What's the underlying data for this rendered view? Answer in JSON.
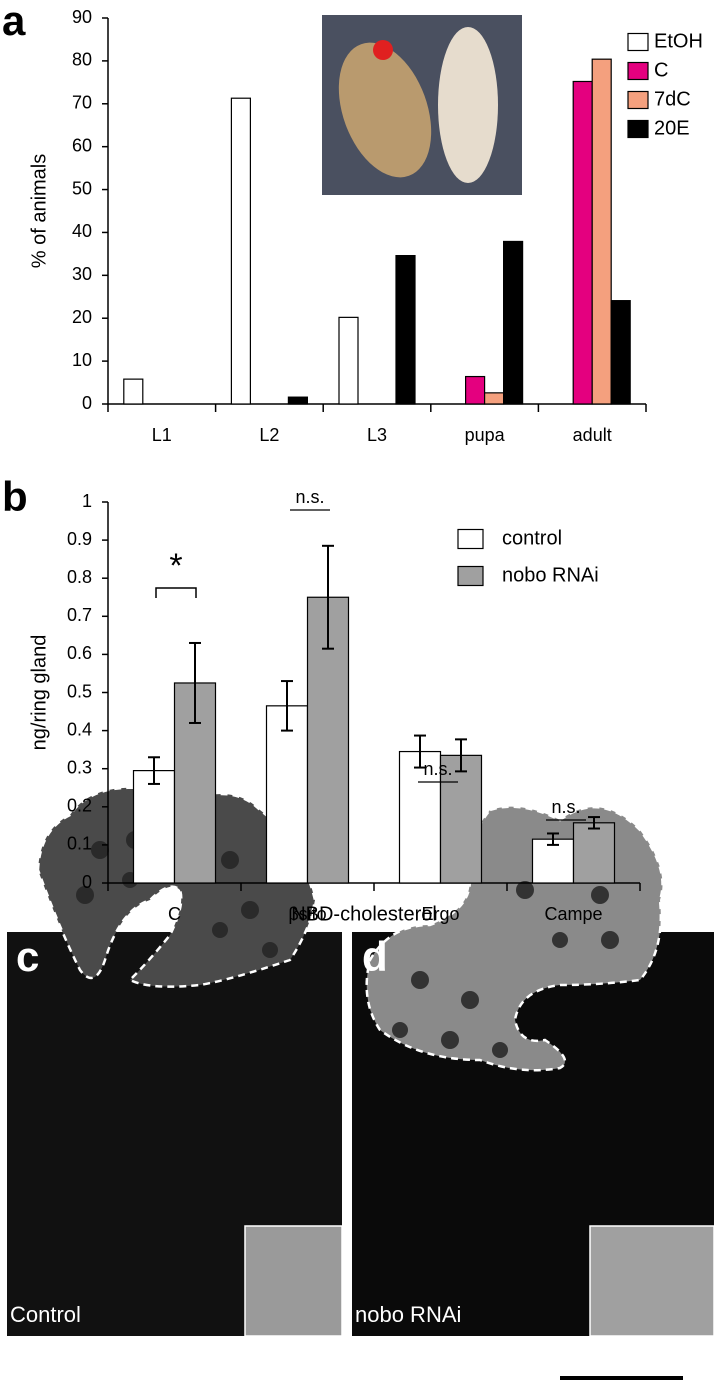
{
  "chart_data": [
    {
      "type": "bar",
      "y_label": "% of animals",
      "categories": [
        "L1",
        "L2",
        "L3",
        "pupa",
        "adult"
      ],
      "series": [
        {
          "name": "EtOH",
          "color": "#ffffff",
          "values": [
            5.8,
            71.3,
            20.2,
            0,
            0
          ]
        },
        {
          "name": "C",
          "color": "#e4007f",
          "values": [
            0,
            0,
            0,
            6.4,
            75.2
          ]
        },
        {
          "name": "7dC",
          "color": "#f4a07e",
          "values": [
            0,
            0,
            0,
            2.6,
            80.4
          ]
        },
        {
          "name": "20E",
          "color": "#000000",
          "values": [
            0,
            1.6,
            34.6,
            37.9,
            24.1
          ]
        }
      ],
      "ylim": [
        0,
        90
      ],
      "yticks": [
        0,
        10,
        20,
        30,
        40,
        50,
        60,
        70,
        80,
        90
      ],
      "legend": "top-right"
    },
    {
      "type": "bar",
      "y_label": "ng/ring gland",
      "categories": [
        "C",
        "βsito",
        "Ergo",
        "Campe"
      ],
      "series": [
        {
          "name": "control",
          "color": "#ffffff",
          "values": [
            0.295,
            0.465,
            0.345,
            0.115
          ],
          "errors": [
            0.035,
            0.065,
            0.042,
            0.015
          ]
        },
        {
          "name": "nobo RNAi",
          "color": "#a0a0a0",
          "values": [
            0.525,
            0.75,
            0.335,
            0.158
          ],
          "errors": [
            0.105,
            0.135,
            0.042,
            0.015
          ]
        }
      ],
      "annotations": [
        "*",
        "n.s.",
        "n.s.",
        "n.s."
      ],
      "ylim": [
        0,
        1
      ],
      "yticks": [
        0,
        0.1,
        0.2,
        0.3,
        0.4,
        0.5,
        0.6,
        0.7,
        0.8,
        0.9,
        1
      ],
      "legend": "top-right"
    }
  ],
  "figure": {
    "panel_labels": [
      "a",
      "b",
      "c",
      "d"
    ],
    "image_title": "NBD-cholesterol",
    "image_labels": [
      "Control",
      "nobo RNAi"
    ]
  }
}
